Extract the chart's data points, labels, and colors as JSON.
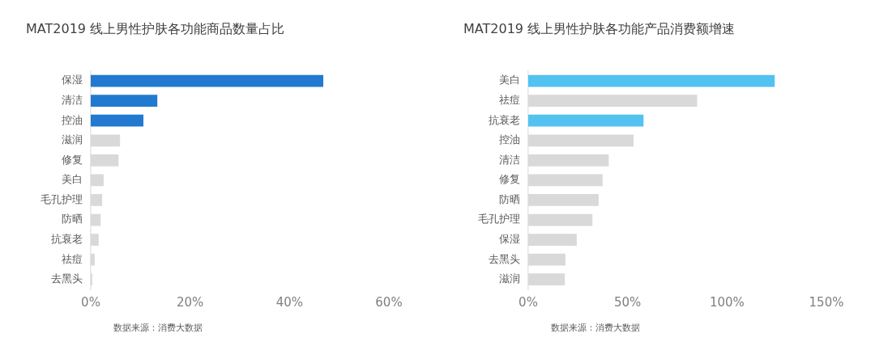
{
  "chart_data": [
    {
      "type": "bar",
      "orientation": "horizontal",
      "title": "MAT2019 线上男性护肤各功能商品数量占比",
      "categories": [
        "保湿",
        "清洁",
        "控油",
        "滋润",
        "修复",
        "美白",
        "毛孔护理",
        "防晒",
        "抗衰老",
        "祛痘",
        "去黑头"
      ],
      "values": [
        46.8,
        13.4,
        10.6,
        5.9,
        5.6,
        2.6,
        2.3,
        2.0,
        1.6,
        0.8,
        0.3
      ],
      "colors": [
        "#2279d0",
        "#2279d0",
        "#2279d0",
        "#d9d9d9",
        "#d9d9d9",
        "#d9d9d9",
        "#d9d9d9",
        "#d9d9d9",
        "#d9d9d9",
        "#d9d9d9",
        "#d9d9d9"
      ],
      "xlim": [
        0,
        60
      ],
      "xticks": [
        {
          "value": 0,
          "label": "0%"
        },
        {
          "value": 20,
          "label": "20%"
        },
        {
          "value": 40,
          "label": "40%"
        },
        {
          "value": 60,
          "label": "60%"
        }
      ],
      "grid": false,
      "legend": false,
      "annotations": [
        "数据来源：消费大数据"
      ]
    },
    {
      "type": "bar",
      "orientation": "horizontal",
      "title": "MAT2019 线上男性护肤各功能产品消费额增速",
      "categories": [
        "美白",
        "祛痘",
        "抗衰老",
        "控油",
        "清洁",
        "修复",
        "防晒",
        "毛孔护理",
        "保湿",
        "去黑头",
        "滋润"
      ],
      "values": [
        124,
        85,
        58,
        53,
        40.5,
        37.4,
        35.4,
        32.3,
        24.4,
        18.7,
        18.4
      ],
      "colors": [
        "#52c2f0",
        "#d9d9d9",
        "#52c2f0",
        "#d9d9d9",
        "#d9d9d9",
        "#d9d9d9",
        "#d9d9d9",
        "#d9d9d9",
        "#d9d9d9",
        "#d9d9d9",
        "#d9d9d9"
      ],
      "xlim": [
        0,
        150
      ],
      "xticks": [
        {
          "value": 0,
          "label": "0%"
        },
        {
          "value": 50,
          "label": "50%"
        },
        {
          "value": 100,
          "label": "100%"
        },
        {
          "value": 150,
          "label": "150%"
        }
      ],
      "grid": false,
      "legend": false,
      "annotations": [
        "数据来源：消费大数据"
      ]
    }
  ]
}
